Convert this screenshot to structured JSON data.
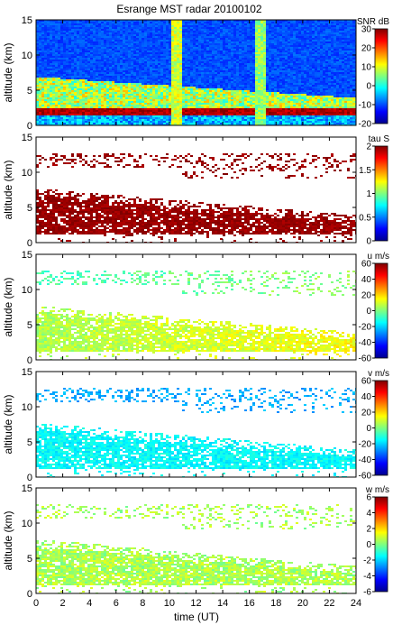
{
  "title": "Esrange MST radar 20100102",
  "xlabel": "time (UT)",
  "ylabel": "altitude (km)",
  "chart_data": [
    {
      "type": "heatmap",
      "panel": "SNR",
      "colorbar_label": "SNR dB",
      "clim": [
        -20,
        30
      ],
      "cticks": [
        -20,
        -10,
        0,
        10,
        20,
        30
      ],
      "xlim": [
        0,
        24
      ],
      "ylim": [
        0,
        15
      ],
      "xticks": [
        0,
        2,
        4,
        6,
        8,
        10,
        12,
        14,
        16,
        18,
        20,
        22,
        24
      ],
      "yticks": [
        0,
        5,
        10,
        15
      ],
      "colormap": "jet",
      "typical_value": -12
    },
    {
      "type": "heatmap",
      "panel": "tau",
      "colorbar_label": "tau S",
      "clim": [
        0,
        2
      ],
      "cticks": [
        0,
        0.5,
        1,
        1.5,
        2
      ],
      "xlim": [
        0,
        24
      ],
      "ylim": [
        0,
        15
      ],
      "xticks": [
        0,
        2,
        4,
        6,
        8,
        10,
        12,
        14,
        16,
        18,
        20,
        22,
        24
      ],
      "yticks": [
        0,
        5,
        10,
        15
      ],
      "colormap": "jet",
      "typical_value": 2.0
    },
    {
      "type": "heatmap",
      "panel": "u",
      "colorbar_label": "u m/s",
      "clim": [
        -60,
        60
      ],
      "cticks": [
        -60,
        -40,
        -20,
        0,
        20,
        40,
        60
      ],
      "xlim": [
        0,
        24
      ],
      "ylim": [
        0,
        15
      ],
      "xticks": [
        0,
        2,
        4,
        6,
        8,
        10,
        12,
        14,
        16,
        18,
        20,
        22,
        24
      ],
      "yticks": [
        0,
        5,
        10,
        15
      ],
      "colormap": "jet",
      "typical_value": 5
    },
    {
      "type": "heatmap",
      "panel": "v",
      "colorbar_label": "v m/s",
      "clim": [
        -60,
        60
      ],
      "cticks": [
        -60,
        -40,
        -20,
        0,
        20,
        40,
        60
      ],
      "xlim": [
        0,
        24
      ],
      "ylim": [
        0,
        15
      ],
      "xticks": [
        0,
        2,
        4,
        6,
        8,
        10,
        12,
        14,
        16,
        18,
        20,
        22,
        24
      ],
      "yticks": [
        0,
        5,
        10,
        15
      ],
      "colormap": "jet",
      "typical_value": -15
    },
    {
      "type": "heatmap",
      "panel": "w",
      "colorbar_label": "w m/s",
      "clim": [
        -6,
        6
      ],
      "cticks": [
        -6,
        -4,
        -2,
        0,
        2,
        4,
        6
      ],
      "xlim": [
        0,
        24
      ],
      "ylim": [
        0,
        15
      ],
      "xticks": [
        0,
        2,
        4,
        6,
        8,
        10,
        12,
        14,
        16,
        18,
        20,
        22,
        24
      ],
      "yticks": [
        0,
        5,
        10,
        15
      ],
      "colormap": "jet",
      "typical_value": 0.5
    }
  ]
}
